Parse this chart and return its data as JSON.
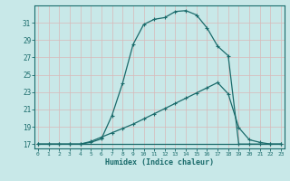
{
  "xlabel": "Humidex (Indice chaleur)",
  "bg_color": "#c8e8e8",
  "grid_color": "#d4eded",
  "line_color": "#1a6b6b",
  "xlim": [
    -0.3,
    23.3
  ],
  "ylim": [
    16.5,
    33.0
  ],
  "yticks": [
    17,
    19,
    21,
    23,
    25,
    27,
    29,
    31
  ],
  "xticks": [
    0,
    1,
    2,
    3,
    4,
    5,
    6,
    7,
    8,
    9,
    10,
    11,
    12,
    13,
    14,
    15,
    16,
    17,
    18,
    19,
    20,
    21,
    22,
    23
  ],
  "curve1_x": [
    0,
    1,
    2,
    3,
    4,
    5,
    6,
    7,
    8,
    9,
    10,
    11,
    12,
    13,
    14,
    15,
    16,
    17,
    18,
    19,
    20,
    21,
    22,
    23
  ],
  "curve1_y": [
    17,
    17,
    17,
    17,
    17,
    17.2,
    17.6,
    20.3,
    24.0,
    28.5,
    30.8,
    31.4,
    31.6,
    32.3,
    32.4,
    31.9,
    30.4,
    28.3,
    27.2,
    17.0,
    17.0,
    17.0,
    17.0,
    17.0
  ],
  "curve2_x": [
    0,
    1,
    2,
    3,
    4,
    5,
    6,
    7,
    8,
    9,
    10,
    11,
    12,
    13,
    14,
    15,
    16,
    17,
    18,
    19,
    20,
    21,
    22,
    23
  ],
  "curve2_y": [
    17,
    17,
    17,
    17,
    17,
    17.3,
    17.8,
    18.3,
    18.8,
    19.3,
    19.9,
    20.5,
    21.1,
    21.7,
    22.3,
    22.9,
    23.5,
    24.1,
    22.8,
    18.9,
    17.5,
    17.2,
    17.0,
    17.0
  ],
  "baseline_x": [
    0,
    23
  ],
  "baseline_y": [
    17,
    17
  ]
}
